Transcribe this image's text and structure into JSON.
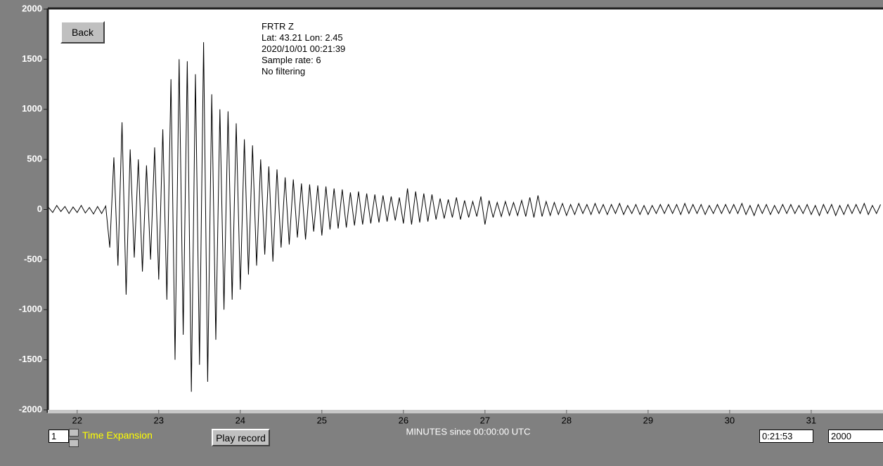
{
  "chart_data": {
    "type": "line",
    "annotations": [
      "FRTR  Z",
      "Lat: 43.21 Lon: 2.45",
      "2020/10/01 00:21:39",
      "Sample rate: 6",
      "No filtering"
    ],
    "xlabel": "MINUTES since 00:00:00 UTC",
    "xlim": [
      21.64,
      31.88
    ],
    "ylim": [
      -2000,
      2000
    ],
    "xticks": [
      22,
      23,
      24,
      25,
      26,
      27,
      28,
      29,
      30,
      31
    ],
    "yticks": [
      2000,
      1500,
      1000,
      500,
      0,
      -500,
      -1000,
      -1500,
      -2000
    ],
    "color": "#000000",
    "x": [
      21.65,
      21.7,
      21.75,
      21.8,
      21.85,
      21.9,
      21.95,
      22.0,
      22.05,
      22.1,
      22.15,
      22.2,
      22.25,
      22.3,
      22.35,
      22.4,
      22.45,
      22.5,
      22.55,
      22.6,
      22.65,
      22.7,
      22.75,
      22.8,
      22.85,
      22.9,
      22.95,
      23.0,
      23.05,
      23.1,
      23.15,
      23.2,
      23.25,
      23.3,
      23.35,
      23.4,
      23.45,
      23.5,
      23.55,
      23.6,
      23.65,
      23.7,
      23.75,
      23.8,
      23.85,
      23.9,
      23.95,
      24.0,
      24.05,
      24.1,
      24.15,
      24.2,
      24.25,
      24.3,
      24.35,
      24.4,
      24.45,
      24.5,
      24.55,
      24.6,
      24.65,
      24.7,
      24.75,
      24.8,
      24.85,
      24.9,
      24.95,
      25.0,
      25.05,
      25.1,
      25.15,
      25.2,
      25.25,
      25.3,
      25.35,
      25.4,
      25.45,
      25.5,
      25.55,
      25.6,
      25.65,
      25.7,
      25.75,
      25.8,
      25.85,
      25.9,
      25.95,
      26.0,
      26.05,
      26.1,
      26.15,
      26.2,
      26.25,
      26.3,
      26.35,
      26.4,
      26.45,
      26.5,
      26.55,
      26.6,
      26.65,
      26.7,
      26.75,
      26.8,
      26.85,
      26.9,
      26.95,
      27.0,
      27.05,
      27.1,
      27.15,
      27.2,
      27.25,
      27.3,
      27.35,
      27.4,
      27.45,
      27.5,
      27.55,
      27.6,
      27.65,
      27.7,
      27.75,
      27.8,
      27.85,
      27.9,
      27.95,
      28.0,
      28.05,
      28.1,
      28.15,
      28.2,
      28.25,
      28.3,
      28.35,
      28.4,
      28.45,
      28.5,
      28.55,
      28.6,
      28.65,
      28.7,
      28.75,
      28.8,
      28.85,
      28.9,
      28.95,
      29.0,
      29.05,
      29.1,
      29.15,
      29.2,
      29.25,
      29.3,
      29.35,
      29.4,
      29.45,
      29.5,
      29.55,
      29.6,
      29.65,
      29.7,
      29.75,
      29.8,
      29.85,
      29.9,
      29.95,
      30.0,
      30.05,
      30.1,
      30.15,
      30.2,
      30.25,
      30.3,
      30.35,
      30.4,
      30.45,
      30.5,
      30.55,
      30.6,
      30.65,
      30.7,
      30.75,
      30.8,
      30.85,
      30.9,
      30.95,
      31.0,
      31.05,
      31.1,
      31.15,
      31.2,
      31.25,
      31.3,
      31.35,
      31.4,
      31.45,
      31.5,
      31.55,
      31.6,
      31.65,
      31.7,
      31.75,
      31.8,
      31.85
    ],
    "values": [
      20,
      -30,
      40,
      -20,
      30,
      -40,
      25,
      -30,
      40,
      -35,
      20,
      -45,
      30,
      -40,
      35,
      -380,
      520,
      -560,
      870,
      -850,
      600,
      -480,
      500,
      -620,
      440,
      -500,
      620,
      -700,
      800,
      -900,
      1300,
      -1500,
      1500,
      -1250,
      1480,
      -1820,
      1350,
      -1550,
      1670,
      -1720,
      1150,
      -1300,
      1000,
      -1000,
      980,
      -900,
      860,
      -800,
      700,
      -650,
      640,
      -560,
      500,
      -450,
      430,
      -520,
      400,
      -380,
      320,
      -350,
      300,
      -280,
      260,
      -300,
      250,
      -220,
      240,
      -260,
      230,
      -200,
      210,
      -190,
      200,
      -180,
      170,
      -160,
      180,
      -150,
      160,
      -140,
      150,
      -130,
      140,
      -120,
      130,
      -110,
      120,
      -140,
      210,
      -150,
      180,
      -130,
      160,
      -120,
      150,
      -100,
      110,
      -90,
      100,
      -80,
      120,
      -100,
      90,
      -80,
      80,
      -70,
      130,
      -150,
      90,
      -80,
      70,
      -70,
      80,
      -60,
      70,
      -60,
      90,
      -70,
      120,
      -80,
      140,
      -70,
      80,
      -60,
      70,
      -50,
      60,
      -60,
      50,
      -50,
      60,
      -40,
      50,
      -50,
      60,
      -40,
      50,
      -50,
      50,
      -40,
      60,
      -50,
      40,
      -40,
      50,
      -50,
      40,
      -50,
      40,
      -40,
      50,
      -40,
      50,
      -40,
      50,
      -50,
      60,
      -40,
      50,
      -40,
      50,
      -50,
      40,
      -40,
      50,
      -40,
      50,
      -40,
      50,
      -40,
      60,
      -50,
      40,
      -60,
      50,
      -40,
      50,
      -50,
      40,
      -40,
      50,
      -40,
      50,
      -40,
      40,
      -40,
      50,
      -50,
      40,
      -60,
      50,
      -40,
      50,
      -60,
      40,
      -50,
      50,
      -40,
      50,
      -40,
      60,
      -50,
      40,
      -40,
      50
    ]
  },
  "controls": {
    "back": "Back",
    "time_expansion_value": "1",
    "time_expansion_label": "Time Expansion",
    "play": "Play record",
    "time_field": "0:21:53",
    "scale_field": "2000"
  }
}
